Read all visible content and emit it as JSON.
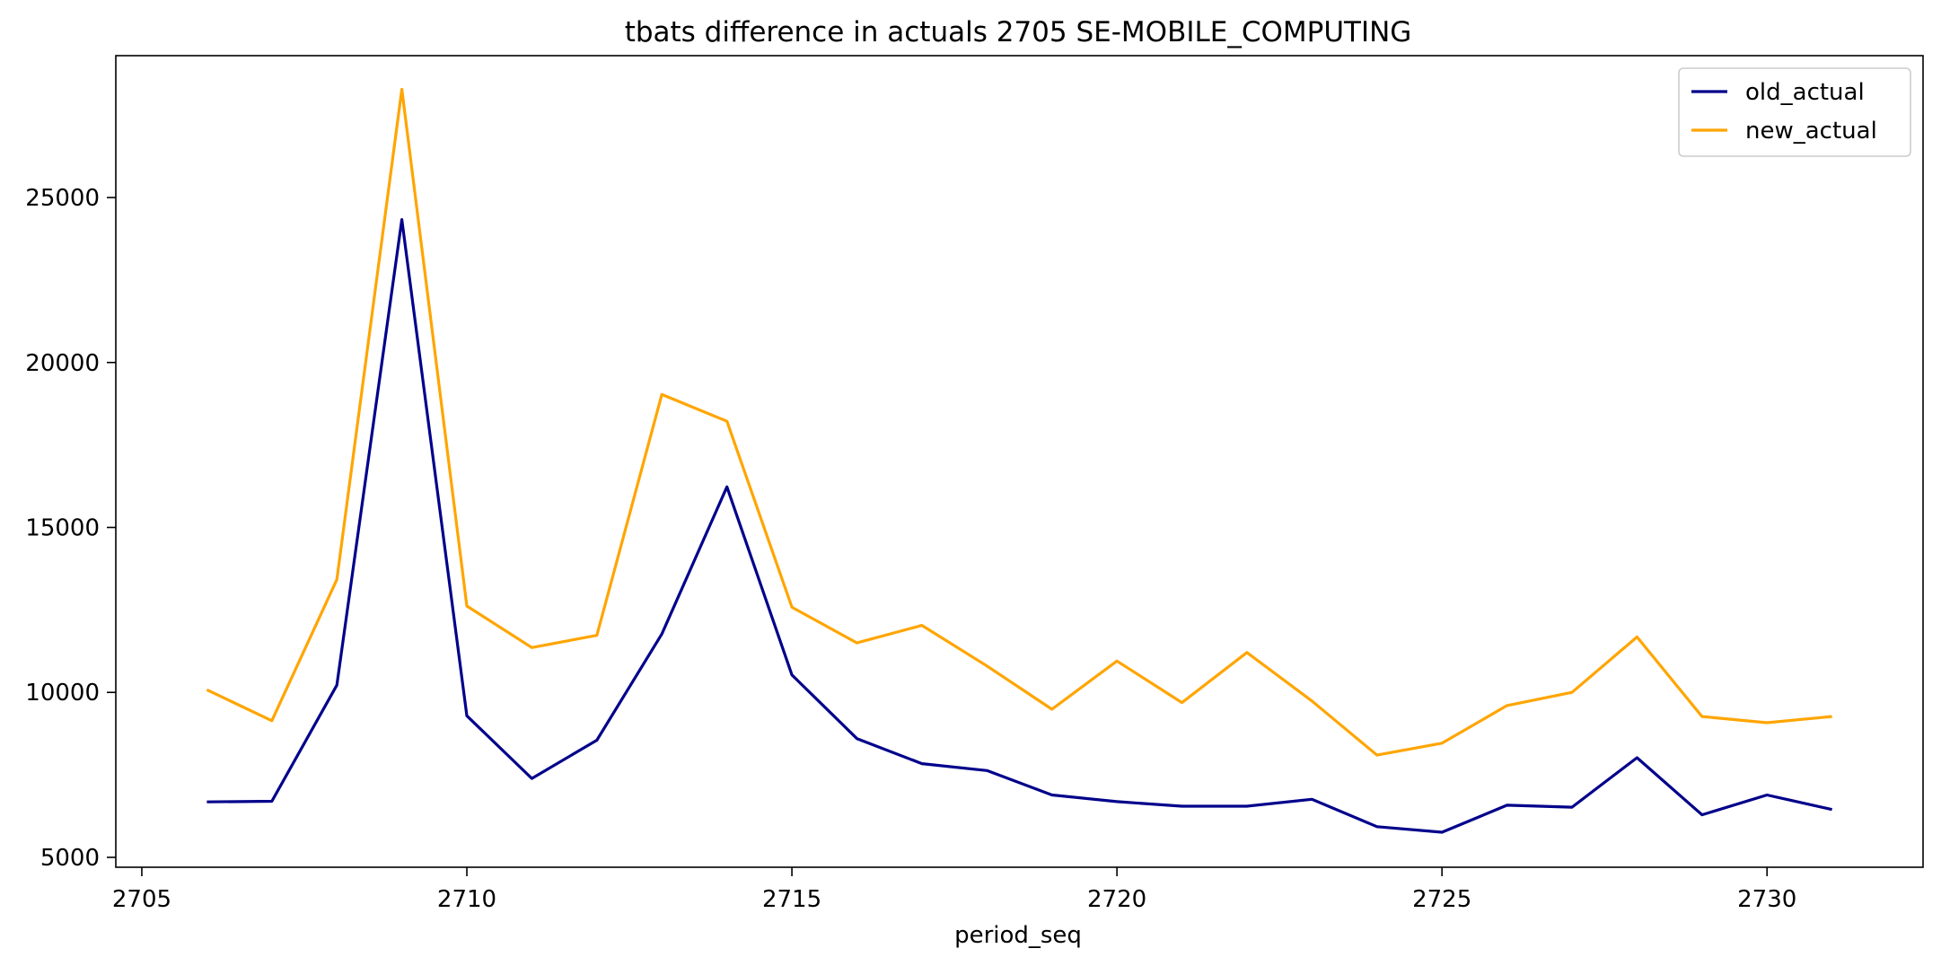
{
  "chart_data": {
    "type": "line",
    "title": "tbats difference in actuals 2705 SE-MOBILE_COMPUTING",
    "xlabel": "period_seq",
    "ylabel": "",
    "xlim": [
      2704.6,
      2732.4
    ],
    "ylim": [
      4700,
      29300
    ],
    "xticks": [
      2705,
      2710,
      2715,
      2720,
      2725,
      2730
    ],
    "yticks": [
      5000,
      10000,
      15000,
      20000,
      25000
    ],
    "grid": false,
    "legend": "top-right",
    "x": [
      2706,
      2707,
      2708,
      2709,
      2710,
      2711,
      2712,
      2713,
      2714,
      2715,
      2716,
      2717,
      2718,
      2719,
      2720,
      2721,
      2722,
      2723,
      2724,
      2725,
      2726,
      2727,
      2728,
      2729,
      2730,
      2731
    ],
    "series": [
      {
        "name": "old_actual",
        "color": "#00008b",
        "values": [
          6680,
          6700,
          10220,
          24330,
          9290,
          7390,
          8550,
          11770,
          16230,
          10530,
          8600,
          7840,
          7630,
          6890,
          6690,
          6550,
          6550,
          6760,
          5930,
          5760,
          6580,
          6520,
          8020,
          6290,
          6890,
          6450
        ]
      },
      {
        "name": "new_actual",
        "color": "#ffa500",
        "values": [
          10080,
          9140,
          13420,
          28280,
          12620,
          11360,
          11730,
          19030,
          18220,
          12580,
          11500,
          12030,
          10800,
          9490,
          10950,
          9690,
          11210,
          9740,
          8100,
          8460,
          9600,
          10000,
          11680,
          9270,
          9080,
          9270
        ]
      }
    ]
  }
}
